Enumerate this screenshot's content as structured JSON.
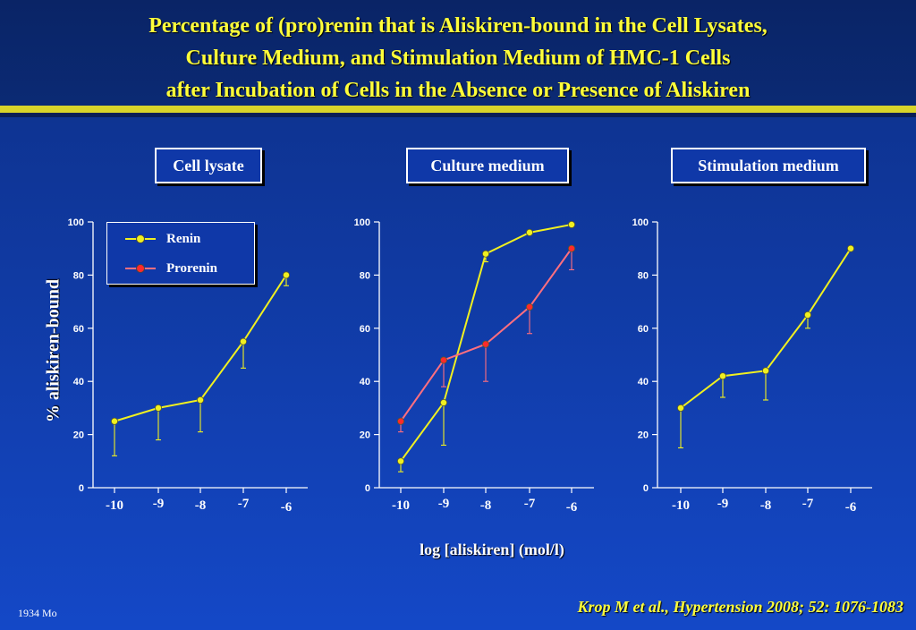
{
  "title": {
    "line1": "Percentage of (pro)renin that is Aliskiren-bound in the Cell Lysates,",
    "line2": "Culture Medium, and Stimulation Medium of HMC-1 Cells",
    "line3": "after Incubation of Cells in the Absence or Presence of Aliskiren"
  },
  "footer": {
    "citation": "Krop M et al., Hypertension 2008; 52: 1076-1083",
    "code": "1934 Mo"
  },
  "colors": {
    "title": "#ffff3a",
    "renin": "#f0f020",
    "prorenin": "#ff6f7f",
    "prorenin_marker": "#ff2a2a",
    "axis": "#ffffff"
  },
  "legend": {
    "renin": "Renin",
    "prorenin": "Prorenin"
  },
  "axes": {
    "ylabel": "% aliskiren-bound",
    "xlabel": "log [aliskiren] (mol/l)"
  },
  "chart_data": [
    {
      "type": "line",
      "title": "Cell lysate",
      "x": [
        -10,
        -9,
        -8,
        -7,
        -6
      ],
      "xticks": [
        "-10",
        "-9",
        "-8",
        "-7",
        "-6"
      ],
      "yticks": [
        "0",
        "20",
        "40",
        "60",
        "80",
        "100"
      ],
      "ylim": [
        0,
        100
      ],
      "series": [
        {
          "name": "Renin",
          "values": [
            25,
            30,
            33,
            55,
            80
          ],
          "err_low": [
            12,
            18,
            21,
            45,
            76
          ]
        }
      ]
    },
    {
      "type": "line",
      "title": "Culture medium",
      "x": [
        -10,
        -9,
        -8,
        -7,
        -6
      ],
      "xticks": [
        "-10",
        "-9",
        "-8",
        "-7",
        "-6"
      ],
      "yticks": [
        "0",
        "20",
        "40",
        "60",
        "80",
        "100"
      ],
      "ylim": [
        0,
        100
      ],
      "series": [
        {
          "name": "Renin",
          "values": [
            10,
            32,
            88,
            96,
            99
          ],
          "err_low": [
            6,
            16,
            85,
            96,
            99
          ]
        },
        {
          "name": "Prorenin",
          "values": [
            25,
            48,
            54,
            68,
            90
          ],
          "err_low": [
            21,
            38,
            40,
            58,
            82
          ]
        }
      ]
    },
    {
      "type": "line",
      "title": "Stimulation medium",
      "x": [
        -10,
        -9,
        -8,
        -7,
        -6
      ],
      "xticks": [
        "-10",
        "-9",
        "-8",
        "-7",
        "-6"
      ],
      "yticks": [
        "0",
        "20",
        "40",
        "60",
        "80",
        "100"
      ],
      "ylim": [
        0,
        100
      ],
      "series": [
        {
          "name": "Renin",
          "values": [
            30,
            42,
            44,
            65,
            90
          ],
          "err_low": [
            15,
            34,
            33,
            60,
            90
          ]
        }
      ]
    }
  ]
}
